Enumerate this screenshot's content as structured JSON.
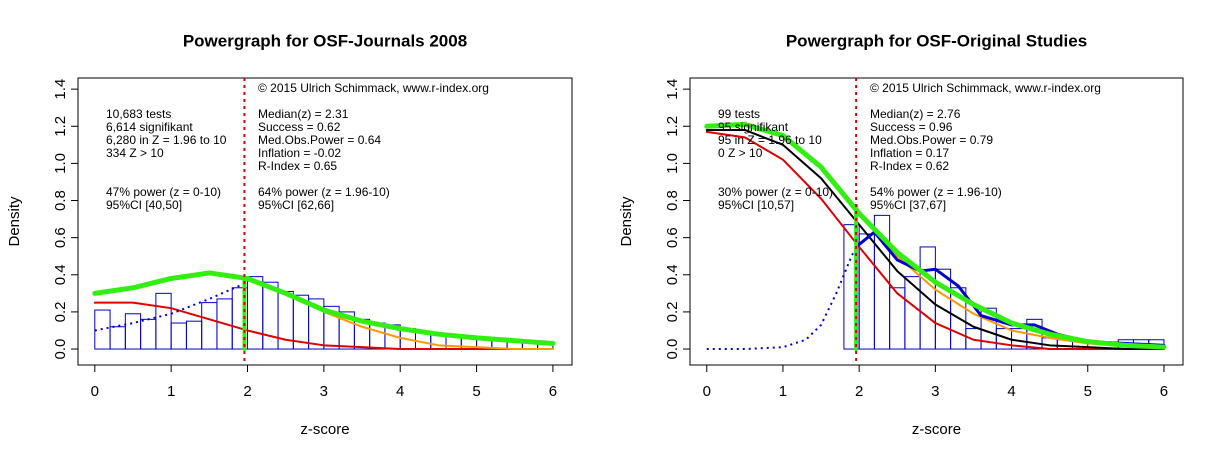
{
  "chart_data": [
    {
      "type": "histogram",
      "title": "Powergraph for OSF-Journals 2008",
      "xlabel": "z-score",
      "ylabel": "Density",
      "xlim": [
        -0.22,
        6.25
      ],
      "ylim": [
        -0.086,
        1.46
      ],
      "xticks": [
        0,
        1,
        2,
        3,
        4,
        5,
        6
      ],
      "yticks": [
        {
          "value": 0,
          "label": "0.0"
        },
        0.2,
        0.4,
        0.6,
        0.8,
        {
          "value": 1,
          "label": "1.0"
        },
        1.2,
        1.4
      ],
      "bins": [
        0,
        0.2,
        0.4,
        0.6,
        0.8,
        1.0,
        1.2,
        1.4,
        1.6,
        1.8,
        2.0,
        2.2,
        2.4,
        2.6,
        2.8,
        3.0,
        3.2,
        3.4,
        3.6,
        3.8,
        4.0,
        4.2,
        4.4,
        4.6,
        4.8,
        5.0,
        5.2,
        5.4,
        5.6,
        5.8,
        6.0
      ],
      "counts": [
        0.21,
        0.12,
        0.19,
        0.16,
        0.3,
        0.14,
        0.15,
        0.25,
        0.27,
        0.33,
        0.39,
        0.36,
        0.31,
        0.29,
        0.27,
        0.23,
        0.2,
        0.16,
        0.14,
        0.13,
        0.11,
        0.09,
        0.08,
        0.07,
        0.06,
        0.06,
        0.05,
        0.05,
        0.04,
        0.04
      ],
      "hist_color": "#0000cc",
      "vline": 1.96,
      "vline_color": "#dd0000",
      "lines": [
        {
          "color": "#dd0000",
          "style": "solid",
          "width": 2,
          "x": [
            0,
            0.5,
            1,
            1.5,
            2,
            2.5,
            3,
            3.5,
            4,
            4.5,
            5,
            5.5,
            6
          ],
          "values": [
            0.25,
            0.25,
            0.22,
            0.16,
            0.1,
            0.05,
            0.02,
            0.01,
            0,
            0,
            0,
            0,
            0
          ]
        },
        {
          "color": "#ff9900",
          "style": "solid",
          "width": 2,
          "x": [
            2,
            2.5,
            3,
            3.5,
            4,
            4.5,
            5,
            5.5,
            6
          ],
          "values": [
            0.37,
            0.3,
            0.2,
            0.12,
            0.06,
            0.02,
            0.01,
            0,
            0
          ]
        },
        {
          "color": "#0000cc",
          "style": "dotted",
          "width": 2,
          "x": [
            0,
            0.5,
            1,
            1.5,
            2
          ],
          "values": [
            0.1,
            0.14,
            0.19,
            0.27,
            0.36
          ]
        },
        {
          "color": "#33ee11",
          "style": "solid",
          "width": 5,
          "x": [
            0,
            0.5,
            1,
            1.5,
            2,
            2.5,
            3,
            3.5,
            4,
            4.5,
            5,
            5.5,
            6
          ],
          "values": [
            0.3,
            0.33,
            0.38,
            0.41,
            0.38,
            0.3,
            0.21,
            0.15,
            0.11,
            0.08,
            0.06,
            0.045,
            0.03
          ]
        },
        {
          "color": "#33ee11",
          "style": "solid",
          "width": 4,
          "x": [
            1.96,
            1.96
          ],
          "values": [
            0,
            0.37
          ]
        }
      ],
      "copyright": "© 2015 Ulrich Schimmack, www.r-index.org",
      "notes_left": [
        "10,683 tests",
        "6,614 signifikant",
        "6,280 in Z = 1.96 to 10",
        "334 Z > 10",
        "47% power (z = 0-10)",
        "95%CI [40,50]"
      ],
      "notes_right": [
        "Median(z) = 2.31",
        "Success = 0.62",
        "Med.Obs.Power = 0.64",
        "Inflation = -0.02",
        "R-Index = 0.65",
        "64% power (z = 1.96-10)",
        "95%CI [62,66]"
      ]
    },
    {
      "type": "histogram",
      "title": "Powergraph for OSF-Original Studies",
      "xlabel": "z-score",
      "ylabel": "Density",
      "xlim": [
        -0.22,
        6.25
      ],
      "ylim": [
        -0.086,
        1.46
      ],
      "xticks": [
        0,
        1,
        2,
        3,
        4,
        5,
        6
      ],
      "yticks": [
        {
          "value": 0,
          "label": "0.0"
        },
        0.2,
        0.4,
        0.6,
        0.8,
        {
          "value": 1,
          "label": "1.0"
        },
        1.2,
        1.4
      ],
      "bins": [
        1.8,
        2.0,
        2.2,
        2.4,
        2.6,
        2.8,
        3.0,
        3.2,
        3.4,
        3.6,
        3.8,
        4.0,
        4.2,
        4.4,
        4.6,
        4.8,
        5.0,
        5.2,
        5.4,
        5.6,
        5.8,
        6.0
      ],
      "counts": [
        0.67,
        0.62,
        0.72,
        0.33,
        0.39,
        0.55,
        0.43,
        0.33,
        0.11,
        0.22,
        0.11,
        0.11,
        0.16,
        0.06,
        0.05,
        0.05,
        0,
        0,
        0.05,
        0.05,
        0.05
      ],
      "hist_color": "#0000cc",
      "vline": 1.96,
      "vline_color": "#dd0000",
      "lines": [
        {
          "color": "#dd0000",
          "style": "solid",
          "width": 2,
          "x": [
            0,
            0.5,
            1,
            1.5,
            2,
            2.5,
            3,
            3.5,
            4,
            4.5,
            5,
            5.5,
            6
          ],
          "values": [
            1.17,
            1.14,
            1.02,
            0.81,
            0.55,
            0.3,
            0.14,
            0.05,
            0.02,
            0,
            0,
            0,
            0
          ]
        },
        {
          "color": "#ff9900",
          "style": "solid",
          "width": 2,
          "x": [
            2,
            2.5,
            3,
            3.5,
            4,
            4.5,
            5,
            5.5,
            6
          ],
          "values": [
            0.73,
            0.5,
            0.32,
            0.19,
            0.1,
            0.06,
            0.03,
            0.02,
            0.01
          ]
        },
        {
          "color": "#000000",
          "style": "solid",
          "width": 2,
          "x": [
            0,
            0.5,
            1,
            1.5,
            2,
            2.5,
            3,
            3.5,
            4,
            4.5,
            5,
            5.5,
            6
          ],
          "values": [
            1.18,
            1.18,
            1.1,
            0.92,
            0.67,
            0.42,
            0.24,
            0.12,
            0.05,
            0.02,
            0.01,
            0,
            0
          ]
        },
        {
          "color": "#0000cc",
          "style": "solid",
          "width": 3,
          "x": [
            1.96,
            2.2,
            2.5,
            2.8,
            3,
            3.3,
            3.6,
            4,
            4.3,
            4.6,
            5,
            5.5,
            6
          ],
          "values": [
            0.55,
            0.63,
            0.48,
            0.42,
            0.43,
            0.34,
            0.18,
            0.13,
            0.13,
            0.08,
            0.04,
            0.03,
            0.02
          ]
        },
        {
          "color": "#0000cc",
          "style": "dotted",
          "width": 2,
          "x": [
            0,
            0.5,
            1,
            1.3,
            1.5,
            1.7,
            1.9,
            2
          ],
          "values": [
            0,
            0,
            0.01,
            0.05,
            0.13,
            0.3,
            0.5,
            0.58
          ]
        },
        {
          "color": "#33ee11",
          "style": "solid",
          "width": 5,
          "x": [
            0,
            0.5,
            1,
            1.5,
            2,
            2.5,
            3,
            3.5,
            4,
            4.5,
            5,
            5.5,
            6
          ],
          "values": [
            1.2,
            1.21,
            1.15,
            0.98,
            0.73,
            0.52,
            0.36,
            0.24,
            0.14,
            0.08,
            0.04,
            0.02,
            0.01
          ]
        },
        {
          "color": "#33ee11",
          "style": "solid",
          "width": 4,
          "x": [
            1.96,
            1.96
          ],
          "values": [
            0,
            0.77
          ]
        }
      ],
      "copyright": "© 2015 Ulrich Schimmack, www.r-index.org",
      "notes_left": [
        "99 tests",
        "95 signifikant",
        "95 in Z = 1.96 to 10",
        "0 Z > 10",
        "30% power (z = 0-10)",
        "95%CI [10,57]"
      ],
      "notes_right": [
        "Median(z) = 2.76",
        "Success = 0.96",
        "Med.Obs.Power = 0.79",
        "Inflation = 0.17",
        "R-Index = 0.62",
        "54% power (z = 1.96-10)",
        "95%CI [37,67]"
      ]
    }
  ]
}
